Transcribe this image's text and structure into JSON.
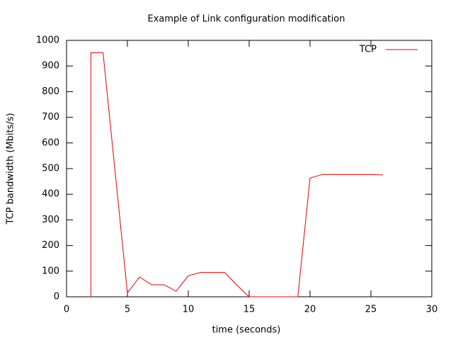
{
  "chart_data": {
    "type": "line",
    "title": "Example of Link configuration modification",
    "x_label": "time (seconds)",
    "y_label": "TCP bandwidth (Mbits/s)",
    "x": [
      2,
      2,
      3,
      4,
      5,
      6,
      7,
      8,
      9,
      10,
      11,
      12,
      13,
      14,
      15,
      16,
      17,
      18,
      19,
      20,
      21,
      22,
      23,
      24,
      25,
      26
    ],
    "series": [
      {
        "name": "TCP",
        "color": "#e00000",
        "values": [
          0,
          952,
          952,
          483,
          15,
          77,
          47,
          47,
          22,
          82,
          95,
          95,
          95,
          45,
          0,
          0,
          0,
          0,
          0,
          463,
          477,
          477,
          477,
          477,
          477,
          475
        ]
      }
    ],
    "xlim": [
      0,
      30
    ],
    "xticks": [
      0,
      5,
      10,
      15,
      20,
      25,
      30
    ],
    "ylim": [
      0,
      1000
    ],
    "yticks": [
      0,
      100,
      200,
      300,
      400,
      500,
      600,
      700,
      800,
      900,
      1000
    ],
    "legend": "top-right",
    "grid": false
  }
}
